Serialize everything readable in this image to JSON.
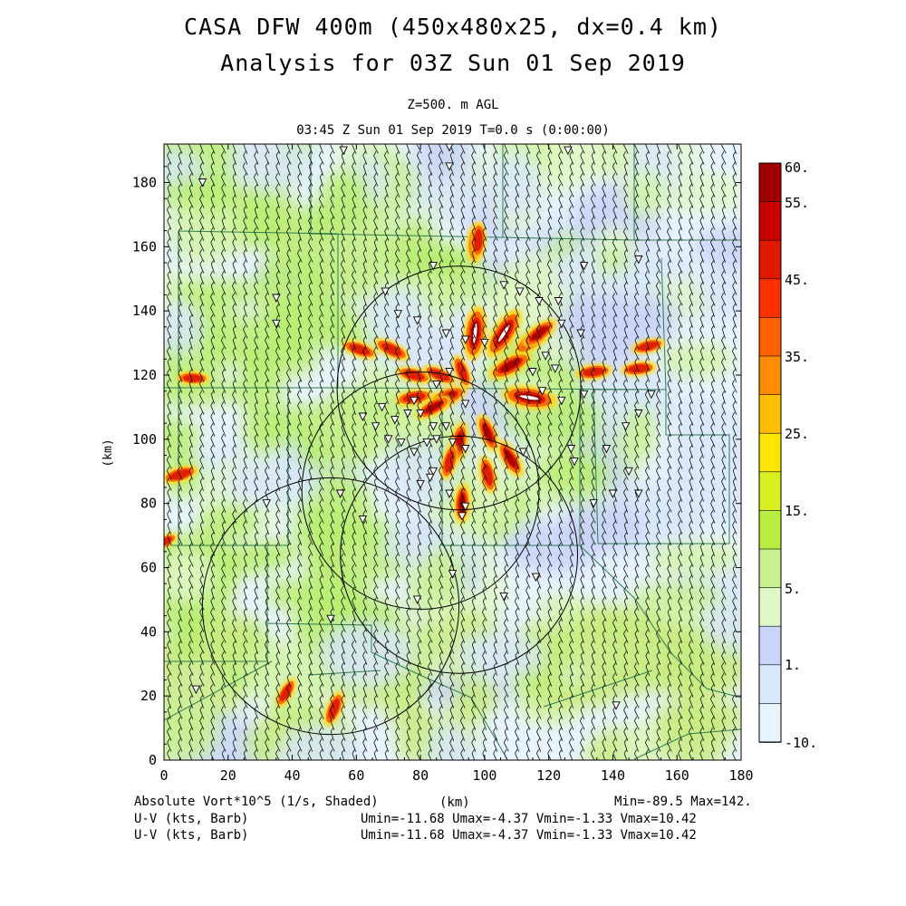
{
  "header": {
    "title_line1": "CASA DFW 400m (450x480x25, dx=0.4 km)",
    "title_line2": "Analysis for 03Z Sun 01 Sep 2019",
    "level": "Z=500. m AGL",
    "valid": "03:45 Z Sun 01 Sep 2019   T=0.0 s (0:00:00)"
  },
  "footer": {
    "field1": "Absolute Vort*10^5 (1/s, Shaded)",
    "field2": "U-V (kts, Barb)",
    "field3": "U-V (kts, Barb)",
    "stats1": "Min=-89.5 Max=142.",
    "stats2": "Umin=-11.68 Umax=-4.37 Vmin=-1.33 Vmax=10.42",
    "stats3": "Umin=-11.68 Umax=-4.37 Vmin=-1.33 Vmax=10.42"
  },
  "chart_data": {
    "type": "heatmap",
    "title": "Analysis for 03Z Sun 01 Sep 2019",
    "xlabel": "(km)",
    "ylabel": "(km)",
    "xlim": [
      0,
      180
    ],
    "ylim": [
      0,
      192
    ],
    "x_ticks": [
      "0",
      "20",
      "40",
      "60",
      "80",
      "100",
      "120",
      "140",
      "160",
      "180"
    ],
    "y_ticks": [
      "0",
      "20",
      "40",
      "60",
      "80",
      "100",
      "120",
      "140",
      "160",
      "180"
    ],
    "colorbar_labels": [
      "60.",
      "55.",
      "45.",
      "35.",
      "25.",
      "15.",
      "5.",
      "1.",
      "-10."
    ],
    "colorbar_colors": [
      "#a00000",
      "#c80000",
      "#e01800",
      "#ff3000",
      "#ff6000",
      "#ff8c00",
      "#ffbe00",
      "#ffe600",
      "#d8f020",
      "#b8ee40",
      "#c8f090",
      "#e0f8c8",
      "#c8d4f8",
      "#d8e8fc",
      "#e8f4fe"
    ],
    "field_stats": {
      "min": -89.5,
      "max": 142.0
    },
    "wind_stats": {
      "umin": -11.68,
      "umax": -4.37,
      "vmin": -1.33,
      "vmax": 10.42
    },
    "radar_range_rings_km": [
      {
        "cx": 92,
        "cy": 116,
        "r": 38
      },
      {
        "cx": 80,
        "cy": 84,
        "r": 37
      },
      {
        "cx": 92,
        "cy": 64,
        "r": 37
      },
      {
        "cx": 52,
        "cy": 48,
        "r": 40
      }
    ],
    "stations_km": [
      [
        12,
        180
      ],
      [
        56,
        190
      ],
      [
        89,
        191
      ],
      [
        89,
        185
      ],
      [
        126,
        190
      ],
      [
        84,
        154
      ],
      [
        131,
        154
      ],
      [
        148,
        156
      ],
      [
        35,
        144
      ],
      [
        35,
        136
      ],
      [
        69,
        146
      ],
      [
        73,
        139
      ],
      [
        79,
        137
      ],
      [
        88,
        133
      ],
      [
        94,
        131
      ],
      [
        100,
        130
      ],
      [
        106,
        148
      ],
      [
        111,
        146
      ],
      [
        117,
        143
      ],
      [
        123,
        143
      ],
      [
        124,
        136
      ],
      [
        130,
        133
      ],
      [
        119,
        126
      ],
      [
        122,
        122
      ],
      [
        115,
        121
      ],
      [
        118,
        115
      ],
      [
        124,
        112
      ],
      [
        131,
        114
      ],
      [
        152,
        114
      ],
      [
        78,
        112
      ],
      [
        85,
        117
      ],
      [
        89,
        121
      ],
      [
        94,
        111
      ],
      [
        68,
        110
      ],
      [
        72,
        106
      ],
      [
        76,
        108
      ],
      [
        80,
        108
      ],
      [
        84,
        104
      ],
      [
        62,
        107
      ],
      [
        66,
        104
      ],
      [
        70,
        100
      ],
      [
        74,
        99
      ],
      [
        78,
        96
      ],
      [
        82,
        99
      ],
      [
        85,
        100
      ],
      [
        88,
        104
      ],
      [
        90,
        99
      ],
      [
        94,
        97
      ],
      [
        112,
        96
      ],
      [
        127,
        97
      ],
      [
        128,
        93
      ],
      [
        138,
        97
      ],
      [
        145,
        90
      ],
      [
        148,
        83
      ],
      [
        84,
        90
      ],
      [
        83,
        88
      ],
      [
        80,
        86
      ],
      [
        89,
        83
      ],
      [
        94,
        79
      ],
      [
        93,
        76
      ],
      [
        55,
        83
      ],
      [
        62,
        75
      ],
      [
        32,
        80
      ],
      [
        90,
        58
      ],
      [
        116,
        57
      ],
      [
        106,
        51
      ],
      [
        79,
        50
      ],
      [
        52,
        44
      ],
      [
        10,
        22
      ],
      [
        141,
        17
      ],
      [
        144,
        104
      ],
      [
        148,
        108
      ],
      [
        140,
        83
      ],
      [
        134,
        80
      ]
    ],
    "vorticity_maxima_km": [
      [
        97,
        133,
        142
      ],
      [
        106,
        133,
        120
      ],
      [
        114,
        113,
        110
      ],
      [
        108,
        123,
        80
      ],
      [
        115,
        131,
        70
      ],
      [
        117,
        133,
        60
      ],
      [
        88,
        113,
        70
      ],
      [
        84,
        110,
        55
      ],
      [
        78,
        113,
        50
      ],
      [
        92,
        99,
        60
      ],
      [
        101,
        102,
        55
      ],
      [
        108,
        94,
        60
      ],
      [
        93,
        80,
        55
      ],
      [
        89,
        93,
        45
      ],
      [
        101,
        89,
        50
      ],
      [
        97,
        161,
        55
      ],
      [
        98,
        162,
        45
      ],
      [
        61,
        128,
        45
      ],
      [
        71,
        128,
        50
      ],
      [
        78,
        120,
        45
      ],
      [
        86,
        120,
        40
      ],
      [
        93,
        121,
        40
      ],
      [
        134,
        121,
        45
      ],
      [
        148,
        122,
        40
      ],
      [
        151,
        129,
        35
      ],
      [
        5,
        89,
        45
      ],
      [
        9,
        119,
        30
      ],
      [
        53,
        16,
        45
      ],
      [
        38,
        21,
        30
      ],
      [
        0,
        68,
        20
      ]
    ]
  }
}
